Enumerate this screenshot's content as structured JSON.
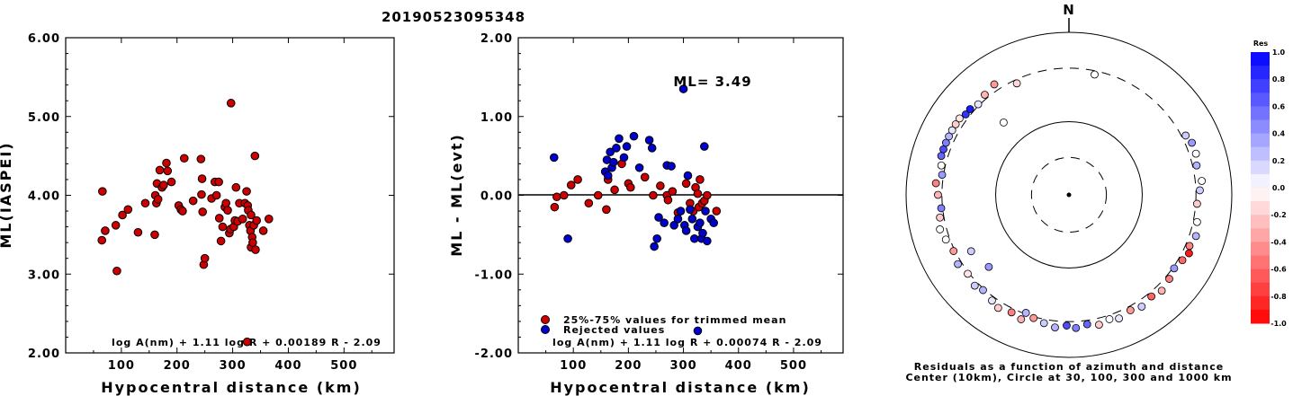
{
  "figure_title": "20190523095348",
  "chart_data": [
    {
      "type": "scatter",
      "xlabel": "Hypocentral distance (km)",
      "ylabel": "ML(IASPEI)",
      "xlim": [
        0,
        590
      ],
      "ylim": [
        2.0,
        6.0
      ],
      "x_ticks": [
        "100",
        "200",
        "300",
        "400",
        "500"
      ],
      "y_ticks": [
        "2.00",
        "3.00",
        "4.00",
        "5.00",
        "6.00"
      ],
      "formula": "log A(nm) + 1.11 log R + 0.00189 R - 2.09",
      "marker_color": "#cc0000",
      "points": [
        [
          66,
          4.05
        ],
        [
          65,
          3.43
        ],
        [
          71,
          3.55
        ],
        [
          90,
          3.62
        ],
        [
          92,
          3.04
        ],
        [
          102,
          3.75
        ],
        [
          112,
          3.82
        ],
        [
          130,
          3.53
        ],
        [
          143,
          3.9
        ],
        [
          160,
          3.5
        ],
        [
          161,
          4.0
        ],
        [
          163,
          3.9
        ],
        [
          164,
          4.15
        ],
        [
          166,
          3.95
        ],
        [
          169,
          4.32
        ],
        [
          173,
          4.1
        ],
        [
          176,
          4.13
        ],
        [
          181,
          4.41
        ],
        [
          183,
          4.31
        ],
        [
          190,
          4.17
        ],
        [
          203,
          3.87
        ],
        [
          207,
          3.82
        ],
        [
          210,
          3.8
        ],
        [
          213,
          4.47
        ],
        [
          229,
          3.93
        ],
        [
          243,
          4.46
        ],
        [
          245,
          4.21
        ],
        [
          244,
          4.01
        ],
        [
          246,
          3.79
        ],
        [
          248,
          3.12
        ],
        [
          250,
          3.2
        ],
        [
          262,
          3.96
        ],
        [
          268,
          4.17
        ],
        [
          271,
          4.0
        ],
        [
          275,
          4.17
        ],
        [
          276,
          3.71
        ],
        [
          279,
          3.42
        ],
        [
          282,
          3.6
        ],
        [
          286,
          3.85
        ],
        [
          288,
          3.9
        ],
        [
          291,
          3.81
        ],
        [
          294,
          3.52
        ],
        [
          296,
          3.57
        ],
        [
          297,
          5.17
        ],
        [
          302,
          3.6
        ],
        [
          304,
          3.68
        ],
        [
          306,
          4.1
        ],
        [
          309,
          3.67
        ],
        [
          312,
          3.9
        ],
        [
          318,
          3.7
        ],
        [
          322,
          3.9
        ],
        [
          325,
          4.05
        ],
        [
          327,
          3.87
        ],
        [
          328,
          3.81
        ],
        [
          330,
          3.62
        ],
        [
          332,
          3.55
        ],
        [
          333,
          3.75
        ],
        [
          333,
          3.34
        ],
        [
          335,
          3.47
        ],
        [
          336,
          3.4
        ],
        [
          338,
          3.62
        ],
        [
          340,
          4.5
        ],
        [
          341,
          3.31
        ],
        [
          343,
          3.68
        ],
        [
          355,
          3.55
        ],
        [
          365,
          3.7
        ],
        [
          326,
          2.14
        ]
      ]
    },
    {
      "type": "scatter",
      "xlabel": "Hypocentral distance (km)",
      "ylabel": "ML - ML(evt)",
      "xlim": [
        0,
        590
      ],
      "ylim": [
        -2.0,
        2.0
      ],
      "x_ticks": [
        "100",
        "200",
        "300",
        "400",
        "500"
      ],
      "y_ticks": [
        "-2.00",
        "-1.00",
        "0.00",
        "1.00",
        "2.00"
      ],
      "annotation": "ML= 3.49",
      "formula": "log A(nm) + 1.11 log R + 0.00074 R - 2.09",
      "legend": [
        "25%-75% values for trimmed mean",
        "Rejected values"
      ],
      "series": [
        {
          "name": "25%-75% values for trimmed mean",
          "color": "#cc0000",
          "points": [
            [
              66,
              -0.15
            ],
            [
              70,
              -0.02
            ],
            [
              83,
              0.0
            ],
            [
              96,
              0.13
            ],
            [
              108,
              0.2
            ],
            [
              128,
              -0.1
            ],
            [
              145,
              0.0
            ],
            [
              160,
              -0.18
            ],
            [
              163,
              0.2
            ],
            [
              175,
              0.07
            ],
            [
              188,
              0.4
            ],
            [
              200,
              0.15
            ],
            [
              204,
              0.1
            ],
            [
              230,
              0.23
            ],
            [
              245,
              0.0
            ],
            [
              258,
              0.12
            ],
            [
              270,
              0.0
            ],
            [
              272,
              -0.06
            ],
            [
              280,
              0.05
            ],
            [
              290,
              -0.22
            ],
            [
              305,
              0.15
            ],
            [
              312,
              -0.1
            ],
            [
              318,
              -0.2
            ],
            [
              322,
              0.1
            ],
            [
              326,
              0.02
            ],
            [
              328,
              -0.15
            ],
            [
              330,
              0.2
            ],
            [
              334,
              -0.1
            ],
            [
              338,
              -0.07
            ],
            [
              343,
              0.0
            ],
            [
              360,
              -0.2
            ]
          ]
        },
        {
          "name": "Rejected values",
          "color": "#0000cc",
          "points": [
            [
              65,
              0.48
            ],
            [
              90,
              -0.55
            ],
            [
              158,
              0.3
            ],
            [
              161,
              0.45
            ],
            [
              163,
              0.25
            ],
            [
              167,
              0.55
            ],
            [
              170,
              0.35
            ],
            [
              173,
              0.42
            ],
            [
              178,
              0.6
            ],
            [
              183,
              0.72
            ],
            [
              192,
              0.48
            ],
            [
              197,
              0.62
            ],
            [
              210,
              0.75
            ],
            [
              220,
              0.35
            ],
            [
              238,
              0.7
            ],
            [
              243,
              0.6
            ],
            [
              247,
              -0.65
            ],
            [
              252,
              -0.55
            ],
            [
              255,
              -0.28
            ],
            [
              265,
              -0.35
            ],
            [
              270,
              0.38
            ],
            [
              278,
              0.37
            ],
            [
              283,
              -0.38
            ],
            [
              290,
              -0.3
            ],
            [
              295,
              -0.2
            ],
            [
              300,
              1.35
            ],
            [
              302,
              -0.38
            ],
            [
              305,
              -0.45
            ],
            [
              308,
              0.25
            ],
            [
              312,
              -0.18
            ],
            [
              316,
              -0.3
            ],
            [
              320,
              -0.55
            ],
            [
              326,
              -0.4
            ],
            [
              330,
              -0.35
            ],
            [
              333,
              -0.55
            ],
            [
              335,
              -0.48
            ],
            [
              338,
              0.62
            ],
            [
              340,
              -0.2
            ],
            [
              343,
              -0.58
            ],
            [
              350,
              -0.3
            ],
            [
              355,
              -0.35
            ],
            [
              326,
              -1.72
            ]
          ]
        }
      ]
    },
    {
      "type": "scatter",
      "north_label": "N",
      "caption_line1": "Residuals as a function of azimuth and distance",
      "caption_line2": "Center (10km), Circle at 30, 100, 300 and 1000 km",
      "colorbar_title": "Res",
      "colorbar_ticks": [
        "1.0",
        "0.8",
        "0.6",
        "0.4",
        "0.2",
        "0.0",
        "-0.2",
        "-0.4",
        "-0.6",
        "-0.8",
        "-1.0"
      ],
      "circles_km": [
        10,
        30,
        100,
        300,
        1000
      ],
      "stations": [
        [
          335,
          2.4,
          -0.15
        ],
        [
          12,
          2.4,
          0.0
        ],
        [
          0,
          0.0,
          0.0
        ],
        [
          287,
          2.6,
          0.6
        ],
        [
          290,
          2.6,
          0.7
        ],
        [
          293,
          2.6,
          0.5
        ],
        [
          296,
          2.6,
          0.3
        ],
        [
          299,
          2.6,
          0.1
        ],
        [
          302,
          2.6,
          -0.2
        ],
        [
          305,
          2.6,
          -0.1
        ],
        [
          308,
          2.55,
          0.8
        ],
        [
          311,
          2.55,
          0.9
        ],
        [
          315,
          2.5,
          0.1
        ],
        [
          320,
          2.55,
          -0.3
        ],
        [
          326,
          2.6,
          -0.4
        ],
        [
          63,
          2.55,
          0.2
        ],
        [
          67,
          2.6,
          0.4
        ],
        [
          72,
          2.6,
          0.0
        ],
        [
          77,
          2.55,
          0.3
        ],
        [
          84,
          2.6,
          0.0
        ],
        [
          88,
          2.55,
          0.2
        ],
        [
          94,
          2.5,
          -0.2
        ],
        [
          102,
          2.55,
          0.0
        ],
        [
          108,
          2.6,
          0.3
        ],
        [
          113,
          2.55,
          -0.5
        ],
        [
          116,
          2.6,
          -0.9
        ],
        [
          120,
          2.55,
          -0.6
        ],
        [
          125,
          2.5,
          0.4
        ],
        [
          130,
          2.55,
          -0.5
        ],
        [
          136,
          2.6,
          -0.3
        ],
        [
          141,
          2.55,
          -0.6
        ],
        [
          147,
          2.6,
          0.2
        ],
        [
          152,
          2.55,
          -0.4
        ],
        [
          158,
          2.6,
          0.1
        ],
        [
          162,
          2.55,
          0.0
        ],
        [
          167,
          2.6,
          -0.2
        ],
        [
          172,
          2.55,
          0.6
        ],
        [
          177,
          2.6,
          0.5
        ],
        [
          181,
          2.55,
          0.7
        ],
        [
          186,
          2.6,
          0.3
        ],
        [
          191,
          2.55,
          0.2
        ],
        [
          196,
          2.5,
          -0.4
        ],
        [
          201,
          2.6,
          -0.3
        ],
        [
          206,
          2.55,
          -0.5
        ],
        [
          212,
          2.6,
          -0.2
        ],
        [
          216,
          2.55,
          0.1
        ],
        [
          222,
          2.5,
          0.3
        ],
        [
          226,
          2.55,
          0.2
        ],
        [
          232,
          2.5,
          -0.1
        ],
        [
          238,
          2.55,
          0.3
        ],
        [
          244,
          2.5,
          -0.4
        ],
        [
          250,
          2.55,
          0.0
        ],
        [
          255,
          2.6,
          0.0
        ],
        [
          260,
          2.55,
          -0.2
        ],
        [
          264,
          2.5,
          0.5
        ],
        [
          270,
          2.55,
          -0.3
        ],
        [
          275,
          2.6,
          -0.5
        ],
        [
          279,
          2.5,
          0.4
        ],
        [
          283,
          2.55,
          0.0
        ],
        [
          318,
          1.9,
          0.0
        ],
        [
          228,
          2.1,
          0.4
        ],
        [
          240,
          2.2,
          0.2
        ],
        [
          200,
          2.45,
          0.3
        ]
      ]
    }
  ]
}
